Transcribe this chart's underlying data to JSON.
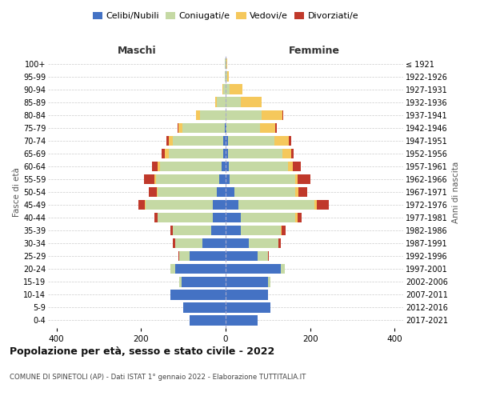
{
  "age_groups": [
    "0-4",
    "5-9",
    "10-14",
    "15-19",
    "20-24",
    "25-29",
    "30-34",
    "35-39",
    "40-44",
    "45-49",
    "50-54",
    "55-59",
    "60-64",
    "65-69",
    "70-74",
    "75-79",
    "80-84",
    "85-89",
    "90-94",
    "95-99",
    "100+"
  ],
  "birth_years": [
    "2017-2021",
    "2012-2016",
    "2007-2011",
    "2002-2006",
    "1997-2001",
    "1992-1996",
    "1987-1991",
    "1982-1986",
    "1977-1981",
    "1972-1976",
    "1967-1971",
    "1962-1966",
    "1957-1961",
    "1952-1956",
    "1947-1951",
    "1942-1946",
    "1937-1941",
    "1932-1936",
    "1927-1931",
    "1922-1926",
    "≤ 1921"
  ],
  "male": {
    "celibe": [
      85,
      100,
      130,
      105,
      120,
      85,
      55,
      35,
      30,
      30,
      20,
      15,
      10,
      5,
      5,
      2,
      0,
      0,
      0,
      0,
      0
    ],
    "coniugato": [
      0,
      0,
      0,
      5,
      10,
      25,
      65,
      90,
      130,
      160,
      140,
      150,
      145,
      130,
      120,
      100,
      60,
      20,
      5,
      2,
      1
    ],
    "vedovo": [
      0,
      0,
      0,
      0,
      0,
      0,
      0,
      0,
      0,
      2,
      2,
      3,
      5,
      8,
      10,
      10,
      10,
      5,
      2,
      0,
      0
    ],
    "divorziato": [
      0,
      0,
      0,
      0,
      0,
      2,
      5,
      5,
      8,
      15,
      20,
      25,
      15,
      8,
      5,
      2,
      0,
      0,
      0,
      0,
      0
    ]
  },
  "female": {
    "nubile": [
      75,
      105,
      100,
      100,
      130,
      75,
      55,
      35,
      35,
      30,
      20,
      10,
      8,
      5,
      5,
      2,
      0,
      0,
      0,
      0,
      0
    ],
    "coniugata": [
      0,
      0,
      0,
      5,
      10,
      25,
      70,
      95,
      130,
      180,
      145,
      155,
      140,
      130,
      110,
      80,
      85,
      35,
      10,
      3,
      1
    ],
    "vedova": [
      0,
      0,
      0,
      0,
      0,
      0,
      0,
      3,
      5,
      5,
      8,
      5,
      10,
      20,
      35,
      35,
      50,
      50,
      30,
      5,
      2
    ],
    "divorziata": [
      0,
      0,
      0,
      0,
      0,
      2,
      5,
      8,
      10,
      30,
      20,
      30,
      20,
      5,
      5,
      5,
      2,
      0,
      0,
      0,
      0
    ]
  },
  "colors": {
    "celibe": "#4472C4",
    "coniugato": "#C5D9A4",
    "vedovo": "#F5C85C",
    "divorziato": "#C0392B"
  },
  "xlim": [
    -420,
    420
  ],
  "xticks": [
    -400,
    -200,
    0,
    200,
    400
  ],
  "xticklabels": [
    "400",
    "200",
    "0",
    "200",
    "400"
  ],
  "title": "Popolazione per età, sesso e stato civile - 2022",
  "subtitle": "COMUNE DI SPINETOLI (AP) - Dati ISTAT 1° gennaio 2022 - Elaborazione TUTTITALIA.IT",
  "ylabel_left": "Fasce di età",
  "ylabel_right": "Anni di nascita",
  "label_maschi": "Maschi",
  "label_femmine": "Femmine",
  "legend_labels": [
    "Celibi/Nubili",
    "Coniugati/e",
    "Vedovi/e",
    "Divorziati/e"
  ],
  "bg_color": "#ffffff",
  "grid_color": "#cccccc"
}
